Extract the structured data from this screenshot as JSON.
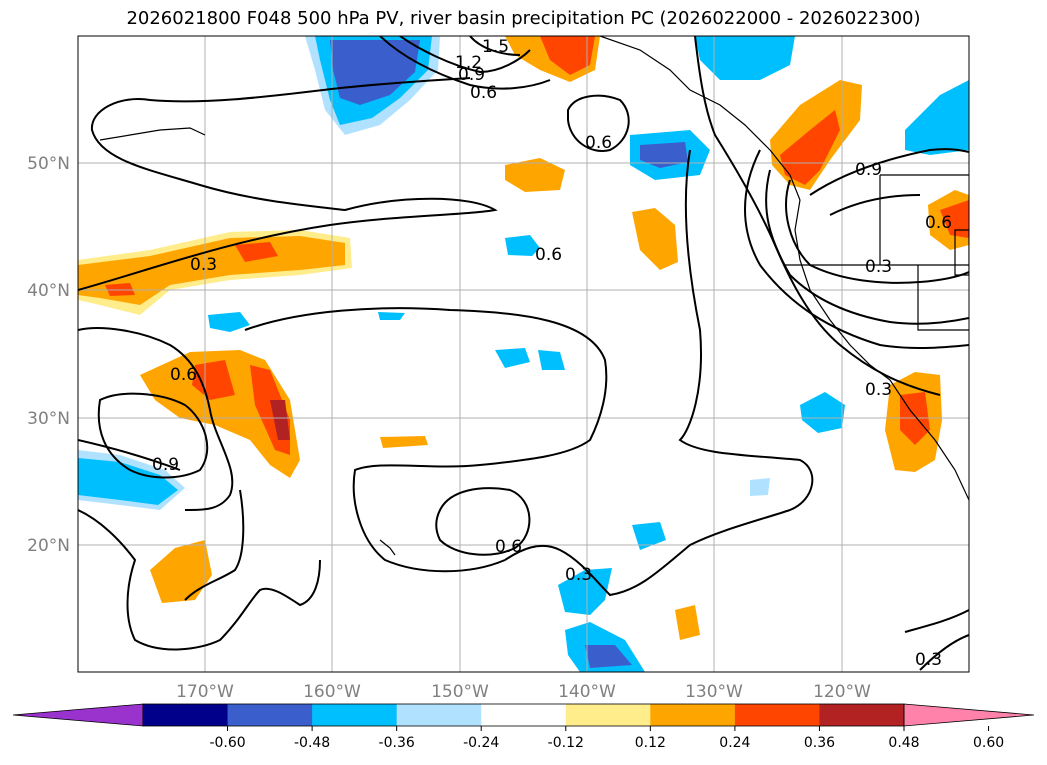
{
  "title": "2026021800 F048 500 hPa PV, river basin precipitation PC (2026022000 - 2026022300)",
  "map": {
    "lat_labels": [
      "50°N",
      "40°N",
      "30°N",
      "20°N"
    ],
    "lon_labels": [
      "170°W",
      "160°W",
      "150°W",
      "140°W",
      "130°W",
      "120°W"
    ],
    "contour_labels": [
      "1.5",
      "1.2",
      "0.9",
      "0.6",
      "0.6",
      "0.6",
      "0.3",
      "0.6",
      "0.9",
      "0.6",
      "0.3",
      "0.9",
      "0.6",
      "0.3",
      "0.3",
      "0.3"
    ]
  },
  "colorbar": {
    "ticks": [
      "-0.60",
      "-0.48",
      "-0.36",
      "-0.24",
      "-0.12",
      "0.12",
      "0.24",
      "0.36",
      "0.48",
      "0.60"
    ],
    "colors": [
      "#9a32cd",
      "#00008b",
      "#3a5fcd",
      "#00bfff",
      "#b0e2ff",
      "#ffffff",
      "#ffec8b",
      "#ffa500",
      "#ff4500",
      "#b22222",
      "#ff82ab"
    ]
  }
}
